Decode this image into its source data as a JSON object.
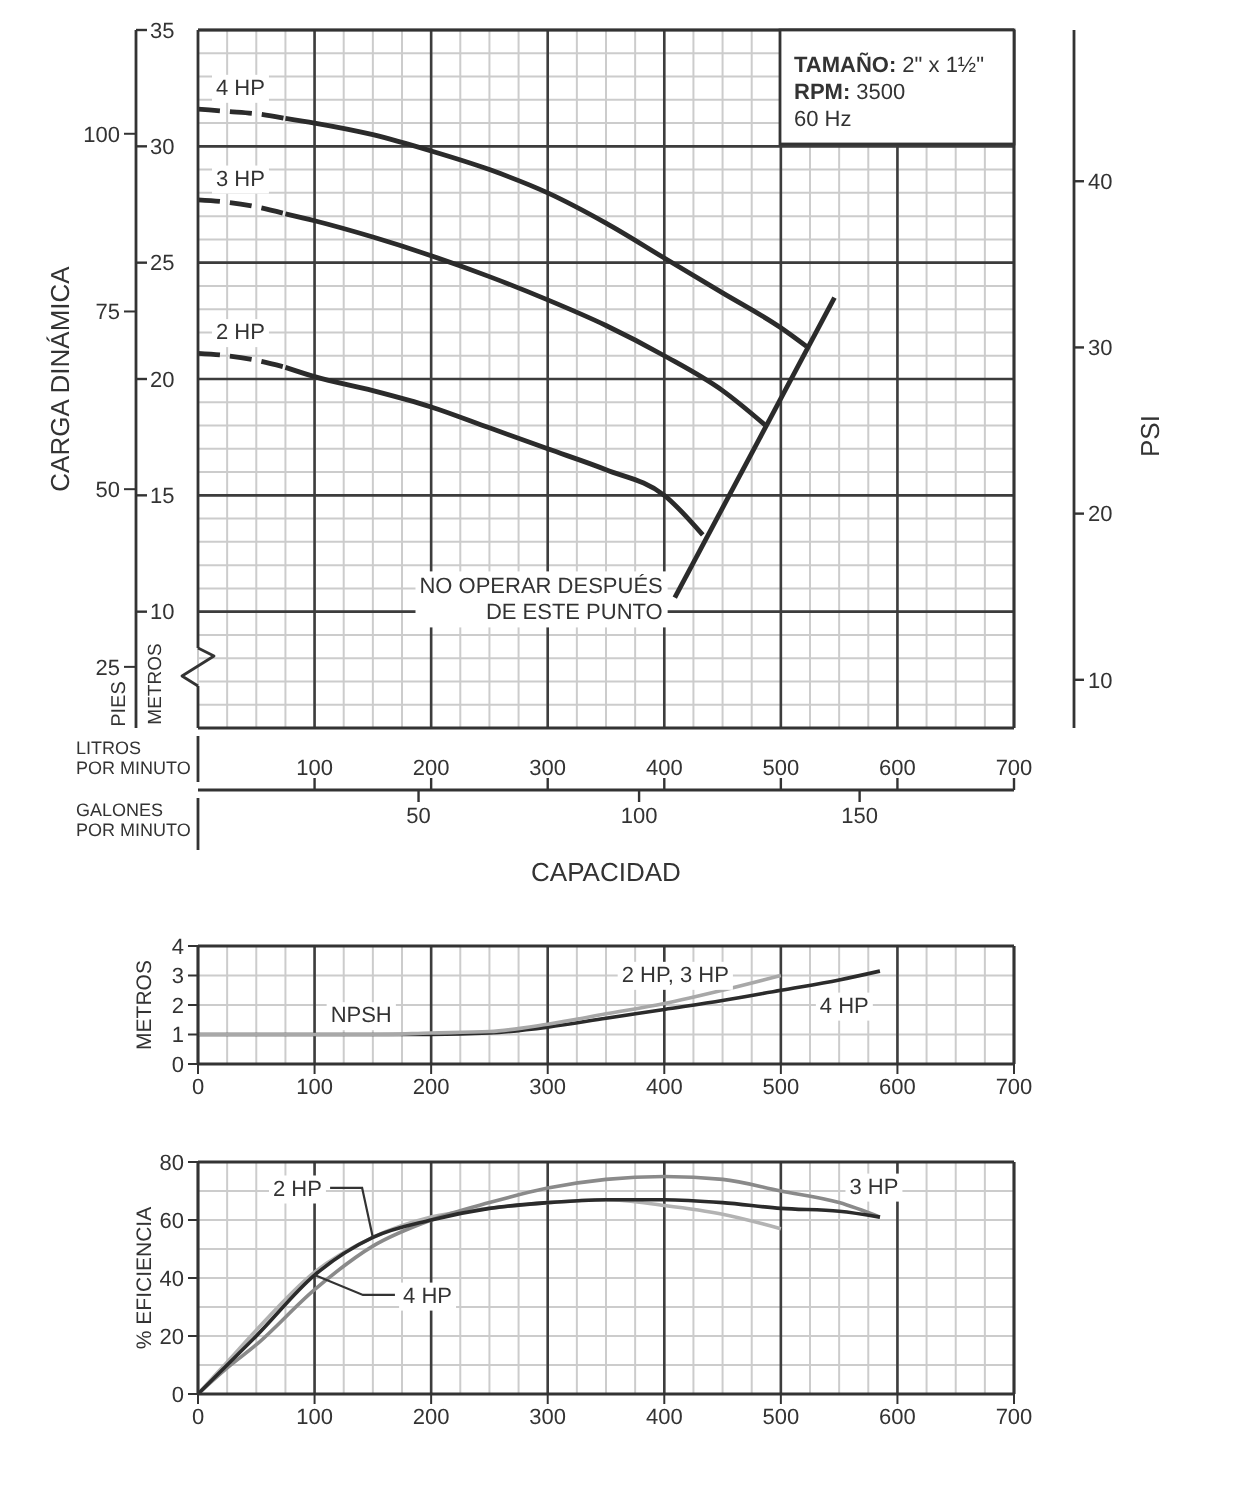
{
  "chart_data": [
    {
      "type": "line",
      "xlabel": "CAPACIDAD",
      "ylabel": "CARGA DINÁMICA",
      "y2label": "PSI",
      "xlim": [
        0,
        700
      ],
      "xticks": [
        100,
        200,
        300,
        400,
        500,
        600,
        700
      ],
      "x2lim": [
        0,
        185
      ],
      "x2ticks": [
        50,
        100,
        150
      ],
      "ylim": [
        5,
        35
      ],
      "yticks": [
        10,
        15,
        20,
        25,
        30,
        35
      ],
      "y2lim": [
        7.1,
        49.1
      ],
      "y2ticks": [
        10,
        20,
        30,
        40
      ],
      "y3lim": [
        16.4,
        114.6
      ],
      "y3ticks": [
        25,
        50,
        75,
        100
      ],
      "grid": true,
      "annotations": [
        "TAMAÑO: 2\" x 1½\"",
        "RPM: 3500",
        "60 Hz",
        "LITROS POR MINUTO",
        "GALONES POR MINUTO",
        "PIES",
        "METROS",
        {
          "text": "NO OPERAR DESPUÉS DE ESTE PUNTO",
          "x": 409,
          "y": 10.6
        }
      ],
      "series": [
        {
          "name": "4 HP",
          "color": "#2b2b2b",
          "line_style": "dashed",
          "x": [
            0,
            25,
            50,
            75
          ],
          "values": [
            31.6,
            31.5,
            31.4,
            31.2
          ]
        },
        {
          "color": "#2b2b2b",
          "x": [
            75,
            100,
            150,
            200,
            250,
            300,
            350,
            400,
            450,
            500,
            522
          ],
          "values": [
            31.2,
            31.0,
            30.5,
            29.8,
            29.0,
            28.0,
            26.7,
            25.2,
            23.7,
            22.2,
            21.4
          ]
        },
        {
          "name": "3 HP",
          "color": "#2b2b2b",
          "line_style": "dashed",
          "x": [
            0,
            25,
            50,
            75
          ],
          "values": [
            27.7,
            27.6,
            27.4,
            27.1
          ]
        },
        {
          "color": "#2b2b2b",
          "x": [
            75,
            100,
            150,
            200,
            250,
            300,
            350,
            400,
            450,
            487
          ],
          "values": [
            27.1,
            26.8,
            26.1,
            25.3,
            24.4,
            23.4,
            22.3,
            21.0,
            19.5,
            18.0
          ]
        },
        {
          "name": "2 HP",
          "color": "#2b2b2b",
          "line_style": "dashed",
          "x": [
            0,
            25,
            50,
            75
          ],
          "values": [
            21.1,
            21.0,
            20.8,
            20.5
          ]
        },
        {
          "color": "#2b2b2b",
          "x": [
            75,
            100,
            150,
            200,
            250,
            300,
            350,
            400,
            433
          ],
          "values": [
            20.5,
            20.1,
            19.5,
            18.8,
            17.9,
            17.0,
            16.1,
            15.0,
            13.3
          ]
        },
        {
          "color": "#2b2b2b",
          "x": [
            409,
            546
          ],
          "values": [
            10.6,
            23.5
          ]
        }
      ]
    },
    {
      "type": "line",
      "ylabel": "METROS",
      "xlim": [
        0,
        700
      ],
      "xticks": [
        0,
        100,
        200,
        300,
        400,
        500,
        600,
        700
      ],
      "ylim": [
        0,
        4
      ],
      "yticks": [
        0,
        1,
        2,
        3,
        4
      ],
      "grid": true,
      "annotations": [
        {
          "text": "NPSH",
          "x": 140,
          "y": 1
        }
      ],
      "series": [
        {
          "name": "4 HP",
          "color": "#2b2b2b",
          "x": [
            0,
            100,
            200,
            250,
            300,
            350,
            400,
            450,
            500,
            550,
            585
          ],
          "values": [
            1,
            1,
            1,
            1.05,
            1.25,
            1.55,
            1.85,
            2.15,
            2.5,
            2.85,
            3.15
          ]
        },
        {
          "name": "2 HP, 3 HP",
          "color": "#a8a8a8",
          "x": [
            0,
            100,
            150,
            200,
            250,
            300,
            350,
            400,
            450,
            500
          ],
          "values": [
            1,
            1,
            1,
            1.05,
            1.1,
            1.35,
            1.7,
            2.05,
            2.5,
            3.0
          ]
        }
      ]
    },
    {
      "type": "line",
      "ylabel": "% EFICIENCIA",
      "xlim": [
        0,
        700
      ],
      "xticks": [
        0,
        100,
        200,
        300,
        400,
        500,
        600,
        700
      ],
      "ylim": [
        0,
        80
      ],
      "yticks": [
        0,
        20,
        40,
        60,
        80
      ],
      "grid": true,
      "series": [
        {
          "name": "2 HP",
          "color": "#b3b3b3",
          "x": [
            0,
            25,
            50,
            100,
            150,
            200,
            250,
            300,
            350,
            400,
            450,
            500
          ],
          "values": [
            0,
            11,
            22,
            42,
            54,
            61,
            64,
            66,
            67,
            65,
            62,
            57
          ]
        },
        {
          "name": "3 HP",
          "color": "#8a8a8a",
          "x": [
            0,
            25,
            50,
            100,
            150,
            200,
            250,
            300,
            350,
            400,
            450,
            500,
            550,
            585
          ],
          "values": [
            0,
            9,
            17,
            36,
            51,
            60,
            66,
            71,
            74,
            75,
            74,
            70,
            66,
            61
          ]
        },
        {
          "name": "4 HP",
          "color": "#2b2b2b",
          "x": [
            0,
            25,
            50,
            100,
            150,
            200,
            250,
            300,
            350,
            400,
            450,
            500,
            550,
            585
          ],
          "values": [
            0,
            10,
            20,
            41,
            54,
            60,
            64,
            66,
            67,
            67,
            66,
            64,
            63,
            61
          ]
        }
      ]
    }
  ]
}
